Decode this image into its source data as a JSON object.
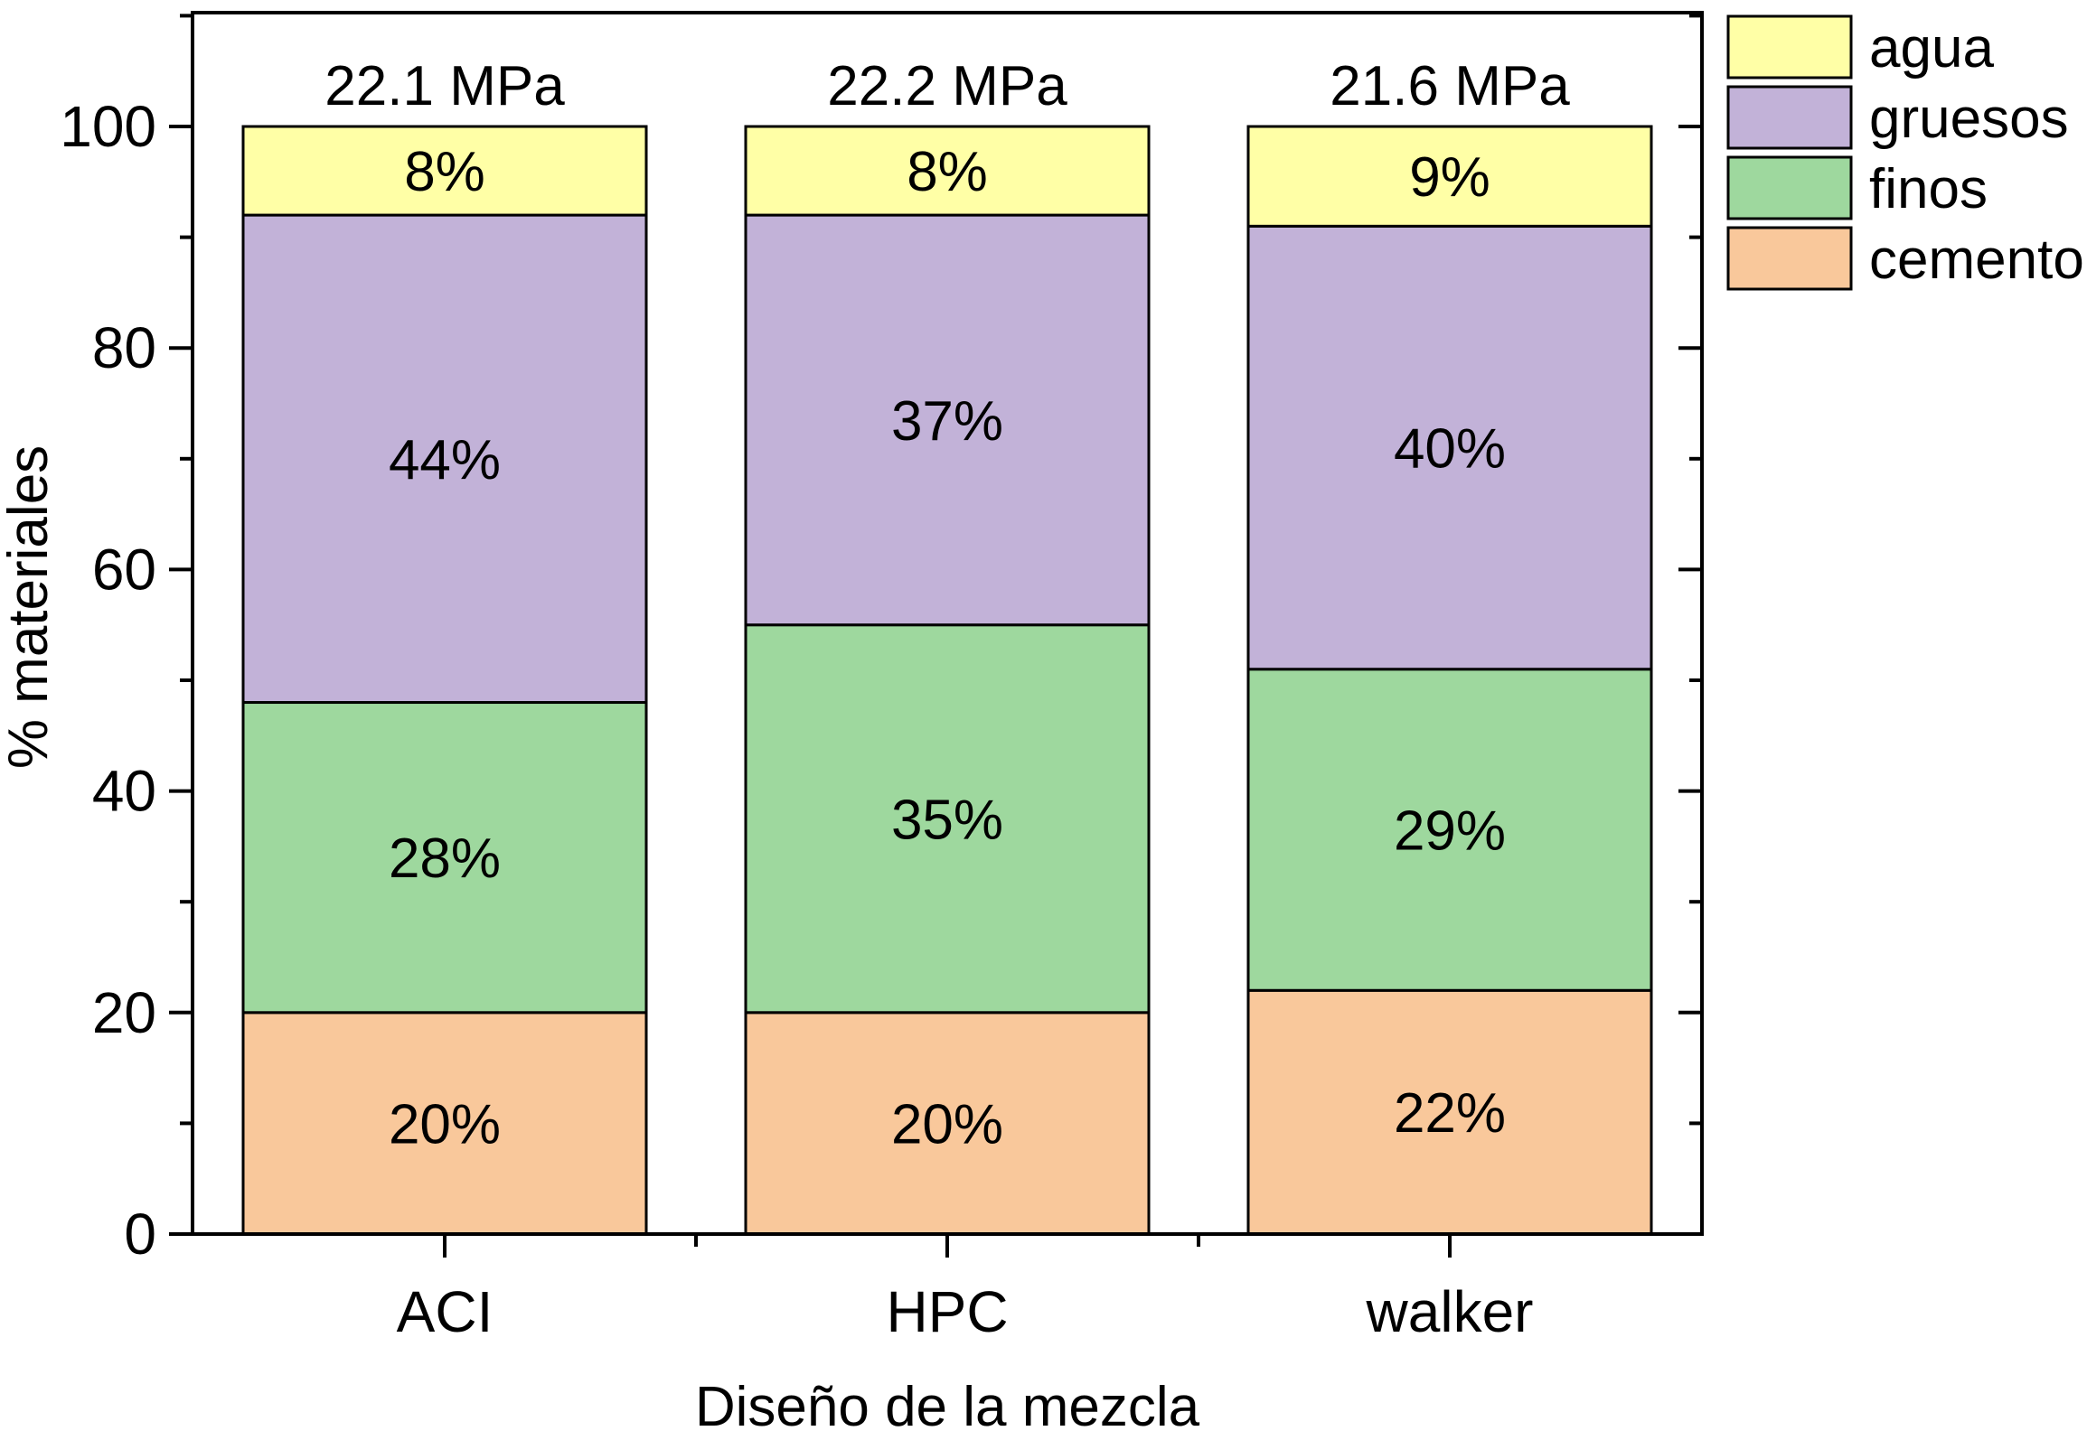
{
  "chart_data": {
    "type": "bar",
    "stacked": true,
    "categories": [
      "ACI",
      "HPC",
      "walker"
    ],
    "bar_annotations": [
      "22.1 MPa",
      "22.2 MPa",
      "21.6 MPa"
    ],
    "series": [
      {
        "name": "cemento",
        "values": [
          20,
          20,
          22
        ],
        "labels": [
          "20%",
          "20%",
          "22%"
        ],
        "color": "#F9C89B"
      },
      {
        "name": "finos",
        "values": [
          28,
          35,
          29
        ],
        "labels": [
          "28%",
          "35%",
          "29%"
        ],
        "color": "#9ED89E"
      },
      {
        "name": "gruesos",
        "values": [
          44,
          37,
          40
        ],
        "labels": [
          "44%",
          "37%",
          "40%"
        ],
        "color": "#C2B2D8"
      },
      {
        "name": "agua",
        "values": [
          8,
          8,
          9
        ],
        "labels": [
          "8%",
          "8%",
          "9%"
        ],
        "color": "#FFFFA6"
      }
    ],
    "legend_order": [
      "agua",
      "gruesos",
      "finos",
      "cemento"
    ],
    "legend_position": "top-right, outside plot",
    "xlabel": "Diseño de la mezcla",
    "ylabel": "% materiales",
    "ylim": [
      0,
      110
    ],
    "yticks": [
      0,
      20,
      40,
      60,
      80,
      100
    ],
    "grid": false
  }
}
